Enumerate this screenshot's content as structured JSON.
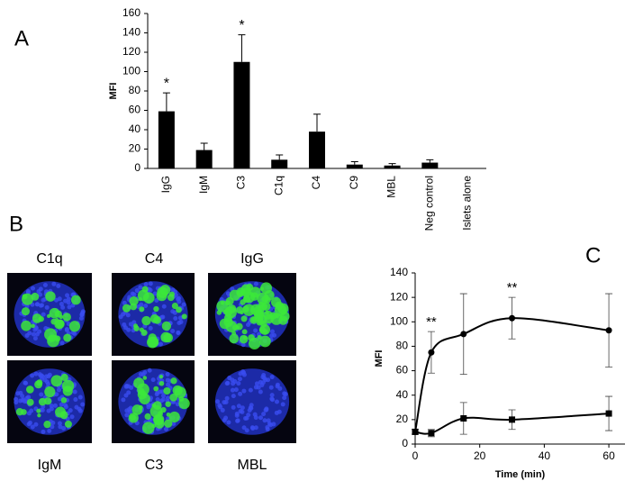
{
  "panels": {
    "a": "A",
    "b": "B",
    "c": "C"
  },
  "micrographs": {
    "top": [
      "C1q",
      "C4",
      "IgG"
    ],
    "bottom": [
      "IgM",
      "C3",
      "MBL"
    ]
  },
  "chart_data": [
    {
      "type": "bar",
      "ylabel": "MFI",
      "categories": [
        "IgG",
        "IgM",
        "C3",
        "C1q",
        "C4",
        "C9",
        "MBL",
        "Neg control",
        "Islets alone"
      ],
      "values": [
        59,
        19,
        110,
        9,
        38,
        4,
        3,
        6,
        0
      ],
      "errors": [
        19,
        7,
        28,
        5,
        18,
        3,
        2,
        3,
        0
      ],
      "color": "#000000",
      "ylim": [
        0,
        160
      ],
      "yticks": [
        0,
        20,
        40,
        60,
        80,
        100,
        120,
        140,
        160
      ],
      "annotations": [
        {
          "text": "*",
          "x": "IgG"
        },
        {
          "text": "*",
          "x": "C3"
        }
      ]
    },
    {
      "type": "line",
      "xlabel": "Time (min)",
      "ylabel": "MFI",
      "x": [
        0,
        5,
        15,
        30,
        60
      ],
      "series": [
        {
          "color": "#000000",
          "marker": "circle",
          "values": [
            10,
            75,
            90,
            103,
            93
          ],
          "errors": [
            2,
            17,
            33,
            17,
            30
          ]
        },
        {
          "color": "#000000",
          "marker": "square",
          "values": [
            10,
            9,
            21,
            20,
            25
          ],
          "errors": [
            2,
            3,
            13,
            8,
            14
          ]
        }
      ],
      "xlim": [
        0,
        65
      ],
      "xticks": [
        0,
        20,
        40,
        60
      ],
      "ylim": [
        0,
        140
      ],
      "yticks": [
        0,
        20,
        40,
        60,
        80,
        100,
        120,
        140
      ],
      "annotations": [
        {
          "text": "**",
          "x": 5
        },
        {
          "text": "**",
          "x": 30
        }
      ]
    }
  ]
}
